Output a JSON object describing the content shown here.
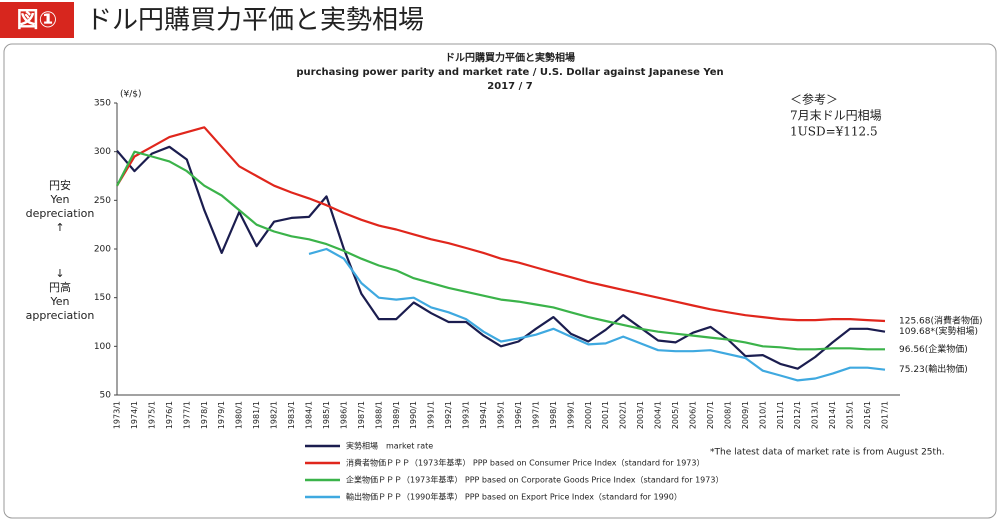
{
  "header": {
    "badge": "図①",
    "title": "ドル円購買力平価と実勢相場"
  },
  "chart_data": {
    "type": "line",
    "title": "ドル円購買力平価と実勢相場",
    "subtitle": "purchasing power parity and market rate / U.S. Dollar against Japanese Yen",
    "date": "2017 / 7",
    "y_unit": "(¥/$)",
    "y_label_up": [
      "円安",
      "Yen",
      "depreciation",
      "↑"
    ],
    "y_label_down": [
      "↓",
      "円高",
      "Yen",
      "appreciation"
    ],
    "note": [
      "＜参考＞",
      "7月末ドル円相場",
      "1USD=¥112.5"
    ],
    "footnote": "*The latest data of market rate is from August 25th.",
    "categories": [
      "1973/1",
      "1974/1",
      "1975/1",
      "1976/1",
      "1977/1",
      "1978/1",
      "1979/1",
      "1980/1",
      "1981/1",
      "1982/1",
      "1983/1",
      "1984/1",
      "1985/1",
      "1986/1",
      "1987/1",
      "1988/1",
      "1989/1",
      "1990/1",
      "1991/1",
      "1992/1",
      "1993/1",
      "1994/1",
      "1995/1",
      "1996/1",
      "1997/1",
      "1998/1",
      "1999/1",
      "2000/1",
      "2001/1",
      "2002/1",
      "2003/1",
      "2004/1",
      "2005/1",
      "2006/1",
      "2007/1",
      "2008/1",
      "2009/1",
      "2010/1",
      "2011/1",
      "2012/1",
      "2013/1",
      "2014/1",
      "2015/1",
      "2016/1",
      "2017/1"
    ],
    "series": [
      {
        "name": "実勢相場　market rate",
        "color": "#1b1d4f",
        "end_label": "109.68*(実勢相場)",
        "values": [
          301,
          280,
          298,
          305,
          292,
          240,
          196,
          238,
          203,
          228,
          232,
          233,
          254,
          200,
          154,
          128,
          128,
          145,
          134,
          125,
          125,
          111,
          100,
          105,
          118,
          130,
          113,
          105,
          117,
          132,
          119,
          106,
          104,
          114,
          120,
          107,
          90,
          91,
          82,
          77,
          89,
          104,
          118,
          118,
          115
        ]
      },
      {
        "name": "消費者物価ＰＰＰ（1973年基準） PPP based on Consumer Price Index（standard for 1973）",
        "color": "#e0261c",
        "end_label": "125.68(消費者物価)",
        "values": [
          265,
          295,
          305,
          315,
          320,
          325,
          305,
          285,
          275,
          265,
          258,
          252,
          245,
          237,
          230,
          224,
          220,
          215,
          210,
          206,
          201,
          196,
          190,
          186,
          181,
          176,
          171,
          166,
          162,
          158,
          154,
          150,
          146,
          142,
          138,
          135,
          132,
          130,
          128,
          127,
          127,
          128,
          128,
          127,
          126
        ]
      },
      {
        "name": "企業物価ＰＰＰ（1973年基準） PPP based on Corporate Goods Price Index（standard for 1973）",
        "color": "#3bb34a",
        "end_label": "96.56(企業物価)",
        "values": [
          265,
          300,
          295,
          290,
          280,
          265,
          255,
          240,
          225,
          218,
          213,
          210,
          205,
          198,
          190,
          183,
          178,
          170,
          165,
          160,
          156,
          152,
          148,
          146,
          143,
          140,
          135,
          130,
          126,
          122,
          118,
          115,
          113,
          111,
          109,
          107,
          104,
          100,
          99,
          97,
          97,
          98,
          98,
          97,
          97
        ]
      },
      {
        "name": "輸出物価ＰＰＰ（1990年基準） PPP based on Export Price Index（standard for 1990）",
        "color": "#3fa9e0",
        "end_label": "75.23(輸出物価)",
        "values": [
          null,
          null,
          null,
          null,
          null,
          null,
          null,
          null,
          null,
          null,
          null,
          195,
          200,
          190,
          165,
          150,
          148,
          150,
          140,
          135,
          128,
          115,
          105,
          108,
          112,
          118,
          110,
          102,
          103,
          110,
          103,
          96,
          95,
          95,
          96,
          92,
          88,
          75,
          70,
          65,
          67,
          72,
          78,
          78,
          76
        ]
      }
    ],
    "ylim": [
      50,
      350
    ],
    "yticks": [
      50,
      100,
      150,
      200,
      250,
      300,
      350
    ],
    "grid": false
  }
}
